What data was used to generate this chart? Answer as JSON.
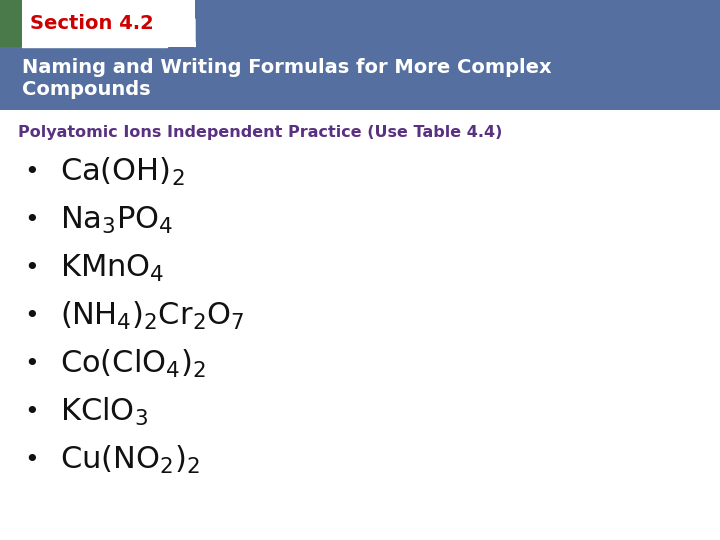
{
  "section_label": "Section 4.2",
  "section_label_color": "#cc0000",
  "header_bg_color": "#5570a0",
  "header_text_line1": "Naming and Writing Formulas for More Complex",
  "header_text_line2": "Compounds",
  "header_text_color": "#ffffff",
  "green_rect_color": "#4a7a4a",
  "subtitle": "Polyatomic Ions Independent Practice (Use Table 4.4)",
  "subtitle_color": "#5a3080",
  "body_bg_color": "#ffffff",
  "bullet_color": "#111111",
  "fig_width": 7.2,
  "fig_height": 5.4,
  "dpi": 100
}
